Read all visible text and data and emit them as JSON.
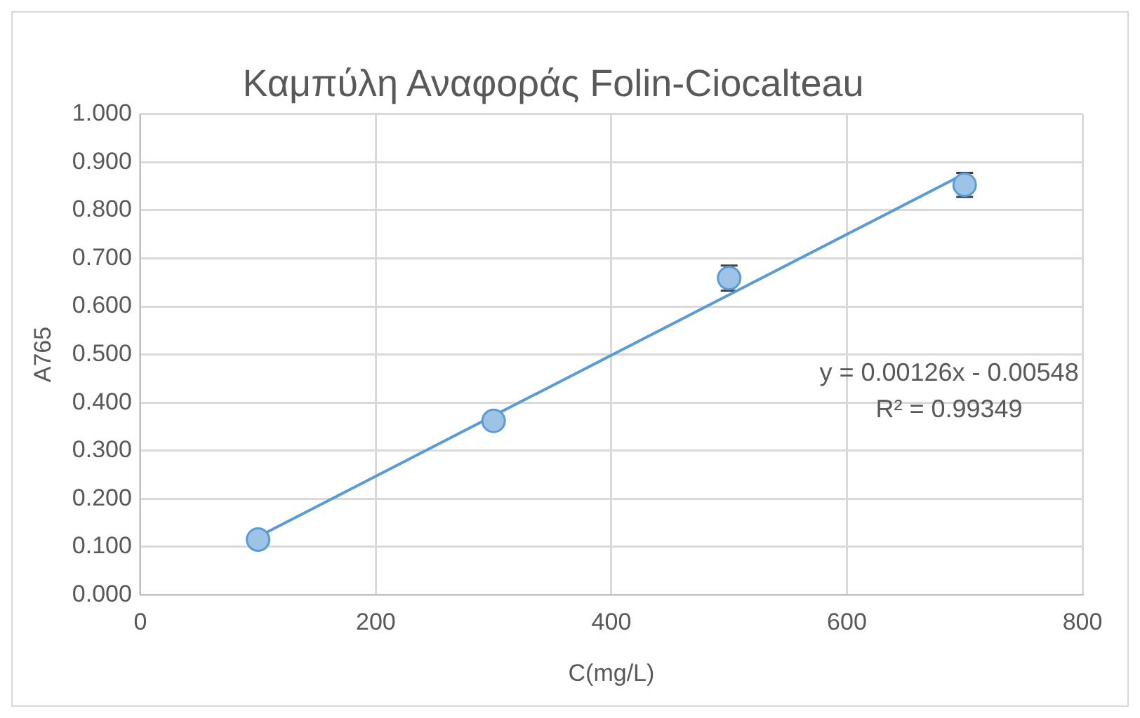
{
  "chart_data": {
    "type": "scatter",
    "title": "Καμπύλη Αναφοράς Folin-Ciocalteau",
    "xlabel": "C(mg/L)",
    "ylabel": "A765",
    "xlim": [
      0,
      800
    ],
    "xticks": [
      0,
      200,
      400,
      600,
      800
    ],
    "ylim": [
      0,
      1
    ],
    "yticks": [
      {
        "value": 0,
        "label": "0.000"
      },
      {
        "value": 0.1,
        "label": "0.100"
      },
      {
        "value": 0.2,
        "label": "0.200"
      },
      {
        "value": 0.3,
        "label": "0.300"
      },
      {
        "value": 0.4,
        "label": "0.400"
      },
      {
        "value": 0.5,
        "label": "0.500"
      },
      {
        "value": 0.6,
        "label": "0.600"
      },
      {
        "value": 0.7,
        "label": "0.700"
      },
      {
        "value": 0.8,
        "label": "0.800"
      },
      {
        "value": 0.9,
        "label": "0.900"
      },
      {
        "value": 1,
        "label": "1.000"
      }
    ],
    "grid": true,
    "marker": "circle",
    "series": [
      {
        "type": "scatter",
        "color": "#9dc3e6",
        "x": [
          100,
          300,
          500,
          700
        ],
        "values": [
          0.115,
          0.362,
          0.659,
          0.853
        ],
        "errors": [
          null,
          null,
          0.026,
          0.025
        ]
      },
      {
        "type": "line",
        "color": "#5b9bd5",
        "marker": "none",
        "x": [
          100,
          700
        ],
        "values": [
          0.121,
          0.876
        ]
      }
    ],
    "annotations": [
      "y = 0.00126x - 0.00548",
      "R² = 0.99349"
    ]
  }
}
